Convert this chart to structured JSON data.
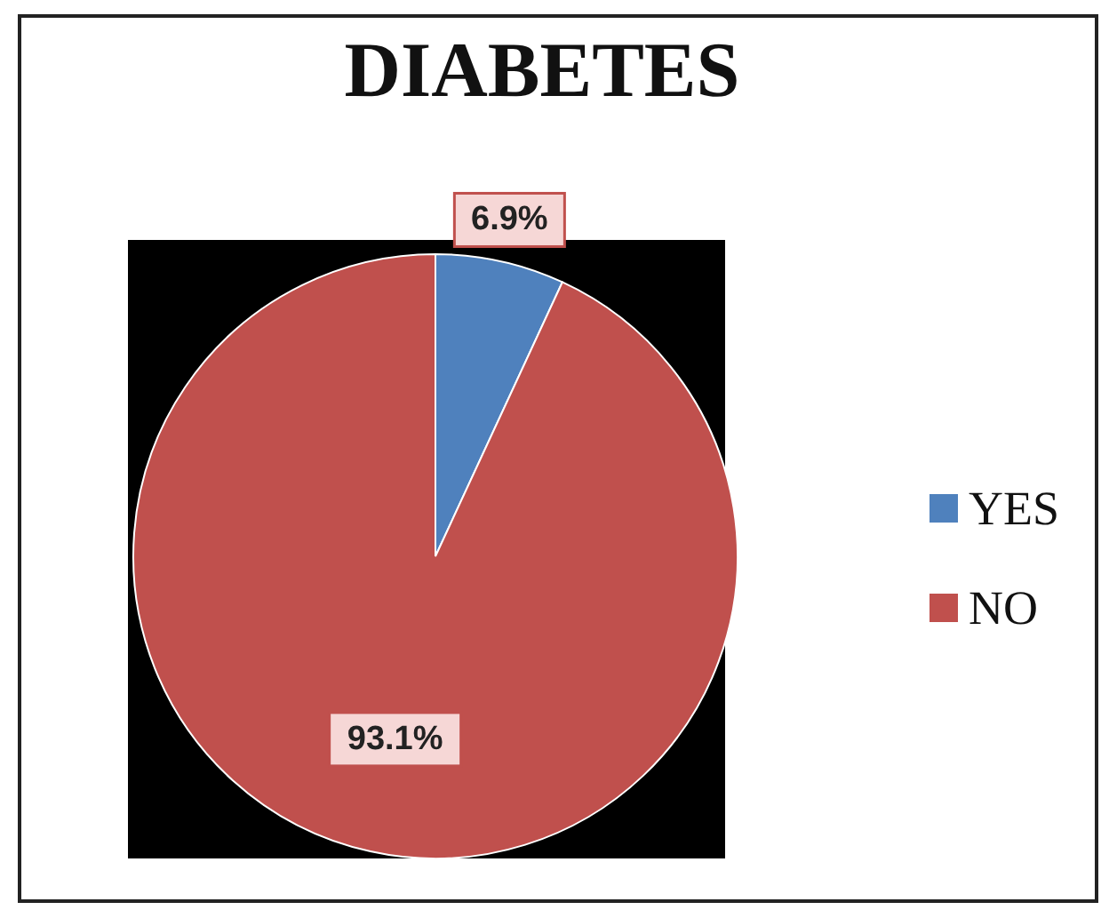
{
  "chart_data": {
    "type": "pie",
    "title": "DIABETES",
    "categories": [
      "YES",
      "NO"
    ],
    "values": [
      6.9,
      93.1
    ],
    "colors": [
      "#4f81bd",
      "#c0504d"
    ],
    "value_labels": [
      "6.9%",
      "93.1%"
    ],
    "legend": "right"
  }
}
